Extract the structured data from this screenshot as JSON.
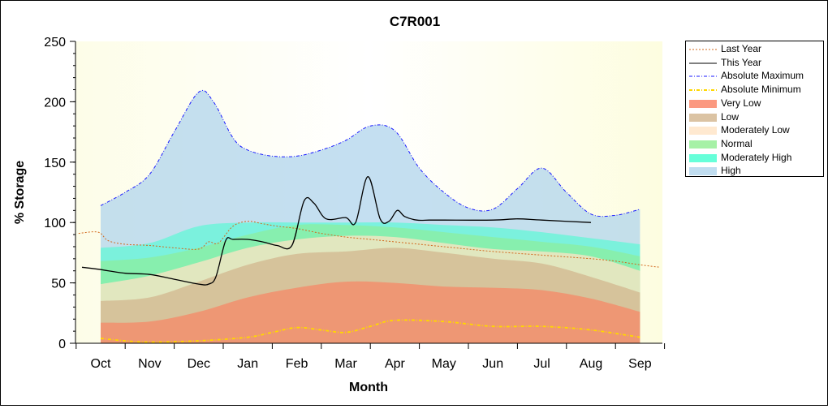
{
  "chart_data": {
    "type": "area",
    "title": "C7R001",
    "xlabel": "Month",
    "ylabel": "% Storage",
    "ylim": [
      0,
      250
    ],
    "yticks": [
      0,
      50,
      100,
      150,
      200,
      250
    ],
    "categories": [
      "Oct",
      "Nov",
      "Dec",
      "Jan",
      "Feb",
      "Mar",
      "Apr",
      "May",
      "Jun",
      "Jul",
      "Aug",
      "Sep"
    ],
    "legend_position": "right",
    "colors": {
      "last_year": "#d2691e",
      "this_year": "#000000",
      "absolute_maximum": "#1a1aff",
      "absolute_minimum": "#ffd700",
      "very_low": "#fa8060",
      "low": "#d2b48c",
      "moderately_low": "#ffe4c4",
      "normal": "#90ee90",
      "moderately_high": "#40ffd0",
      "high": "#b0d4ec"
    },
    "series": [
      {
        "name": "Last Year",
        "style": "dotted-line",
        "x": [
          -0.45,
          -0.05,
          0.15,
          0.5,
          1.0,
          1.5,
          2.0,
          2.2,
          2.4,
          2.7,
          3.0,
          3.3,
          3.6,
          4.0,
          4.5,
          5.0,
          5.5,
          6.0,
          7.0,
          8.0,
          9.0,
          10.0,
          10.5,
          11.0,
          11.4
        ],
        "y": [
          91,
          92,
          85,
          82,
          81,
          79,
          78,
          84,
          83,
          97,
          101,
          99,
          97,
          95,
          91,
          88,
          86,
          84,
          80,
          76,
          73,
          70,
          68,
          65,
          63
        ]
      },
      {
        "name": "This Year",
        "style": "solid-line",
        "x": [
          -0.38,
          0,
          0.5,
          1.0,
          1.5,
          2.0,
          2.2,
          2.35,
          2.55,
          2.7,
          3.0,
          3.3,
          3.6,
          3.9,
          4.15,
          4.35,
          4.6,
          5.0,
          5.2,
          5.45,
          5.7,
          5.88,
          6.05,
          6.2,
          6.45,
          6.7,
          7.0,
          8.0,
          8.5,
          9.0,
          10.0
        ],
        "y": [
          63,
          61,
          58,
          57,
          53,
          49,
          49,
          55,
          85,
          86,
          86,
          84,
          81,
          81,
          118,
          116,
          103,
          104,
          100,
          138,
          103,
          101,
          110,
          105,
          102,
          102,
          102,
          102,
          103,
          102,
          100
        ]
      },
      {
        "name": "Absolute Maximum",
        "style": "dash-dot-line",
        "x": [
          0,
          0.5,
          1.0,
          1.5,
          2.0,
          2.3,
          2.7,
          3.0,
          3.5,
          4.0,
          4.5,
          5.0,
          5.5,
          6.0,
          6.5,
          7.0,
          7.5,
          8.0,
          8.5,
          9.0,
          9.5,
          10.0,
          10.5,
          11.0
        ],
        "y": [
          114,
          125,
          140,
          175,
          208,
          200,
          170,
          160,
          155,
          155,
          160,
          168,
          180,
          176,
          145,
          125,
          112,
          111,
          128,
          145,
          125,
          107,
          106,
          111
        ]
      },
      {
        "name": "Absolute Minimum",
        "style": "dash-dot-line",
        "x": [
          0,
          0.5,
          1.0,
          2.0,
          3.0,
          3.5,
          4.0,
          4.5,
          5.0,
          5.5,
          6.0,
          7.0,
          8.0,
          9.0,
          10.0,
          11.0
        ],
        "y": [
          4,
          2,
          1,
          2,
          5,
          9,
          13,
          11,
          9,
          14,
          19,
          18,
          14,
          14,
          11,
          5
        ]
      },
      {
        "name": "Very Low",
        "style": "band",
        "x": [
          0,
          1,
          2,
          3,
          4,
          5,
          6,
          7,
          8,
          9,
          10,
          11
        ],
        "y": [
          17,
          18,
          26,
          38,
          46,
          51,
          50,
          47,
          46,
          44,
          37,
          26
        ]
      },
      {
        "name": "Low",
        "style": "band",
        "x": [
          0,
          1,
          2,
          3,
          4,
          5,
          6,
          7,
          8,
          9,
          10,
          11
        ],
        "y": [
          35,
          38,
          51,
          65,
          74,
          76,
          79,
          75,
          70,
          66,
          55,
          42
        ]
      },
      {
        "name": "Moderately Low",
        "style": "band",
        "x": [
          0,
          1,
          2,
          3,
          4,
          5,
          6,
          7,
          8,
          9,
          10,
          11
        ],
        "y": [
          49,
          56,
          67,
          79,
          86,
          89,
          88,
          83,
          78,
          76,
          72,
          60
        ]
      },
      {
        "name": "Normal",
        "style": "band",
        "x": [
          0,
          1,
          2,
          3,
          4,
          5,
          6,
          7,
          8,
          9,
          10,
          11
        ],
        "y": [
          68,
          71,
          79,
          90,
          98,
          98,
          96,
          92,
          88,
          84,
          80,
          72
        ]
      },
      {
        "name": "Moderately High",
        "style": "band",
        "x": [
          0,
          1,
          2,
          3,
          4,
          5,
          6,
          7,
          8,
          9,
          10,
          11
        ],
        "y": [
          79,
          83,
          97,
          100,
          100,
          100,
          100,
          98,
          96,
          92,
          87,
          82
        ]
      },
      {
        "name": "High",
        "style": "band",
        "x": [
          0,
          0.5,
          1.0,
          1.5,
          2.0,
          2.3,
          2.7,
          3.0,
          3.5,
          4.0,
          4.5,
          5.0,
          5.5,
          6.0,
          6.5,
          7.0,
          7.5,
          8.0,
          8.5,
          9.0,
          9.5,
          10.0,
          10.5,
          11.0
        ],
        "y": [
          114,
          125,
          140,
          175,
          208,
          200,
          170,
          160,
          155,
          155,
          160,
          168,
          180,
          176,
          145,
          125,
          112,
          111,
          128,
          145,
          125,
          107,
          106,
          111
        ]
      }
    ]
  },
  "legend": {
    "items": [
      {
        "label": "Last Year",
        "kind": "line",
        "dash": "2,2",
        "color": "#d2691e"
      },
      {
        "label": "This Year",
        "kind": "line",
        "dash": "",
        "color": "#000000"
      },
      {
        "label": "Absolute Maximum",
        "kind": "line",
        "dash": "4,2,1,2",
        "color": "#1a1aff"
      },
      {
        "label": "Absolute Minimum",
        "kind": "line",
        "dash": "4,2,1,2",
        "color": "#ffd700"
      },
      {
        "label": "Very Low",
        "kind": "box",
        "color": "#fa8060"
      },
      {
        "label": "Low",
        "kind": "box",
        "color": "#d2b48c"
      },
      {
        "label": "Moderately Low",
        "kind": "box",
        "color": "#ffe4c4"
      },
      {
        "label": "Normal",
        "kind": "box",
        "color": "#90ee90"
      },
      {
        "label": "Moderately High",
        "kind": "box",
        "color": "#40ffd0"
      },
      {
        "label": "High",
        "kind": "box",
        "color": "#b0d4ec"
      }
    ]
  }
}
